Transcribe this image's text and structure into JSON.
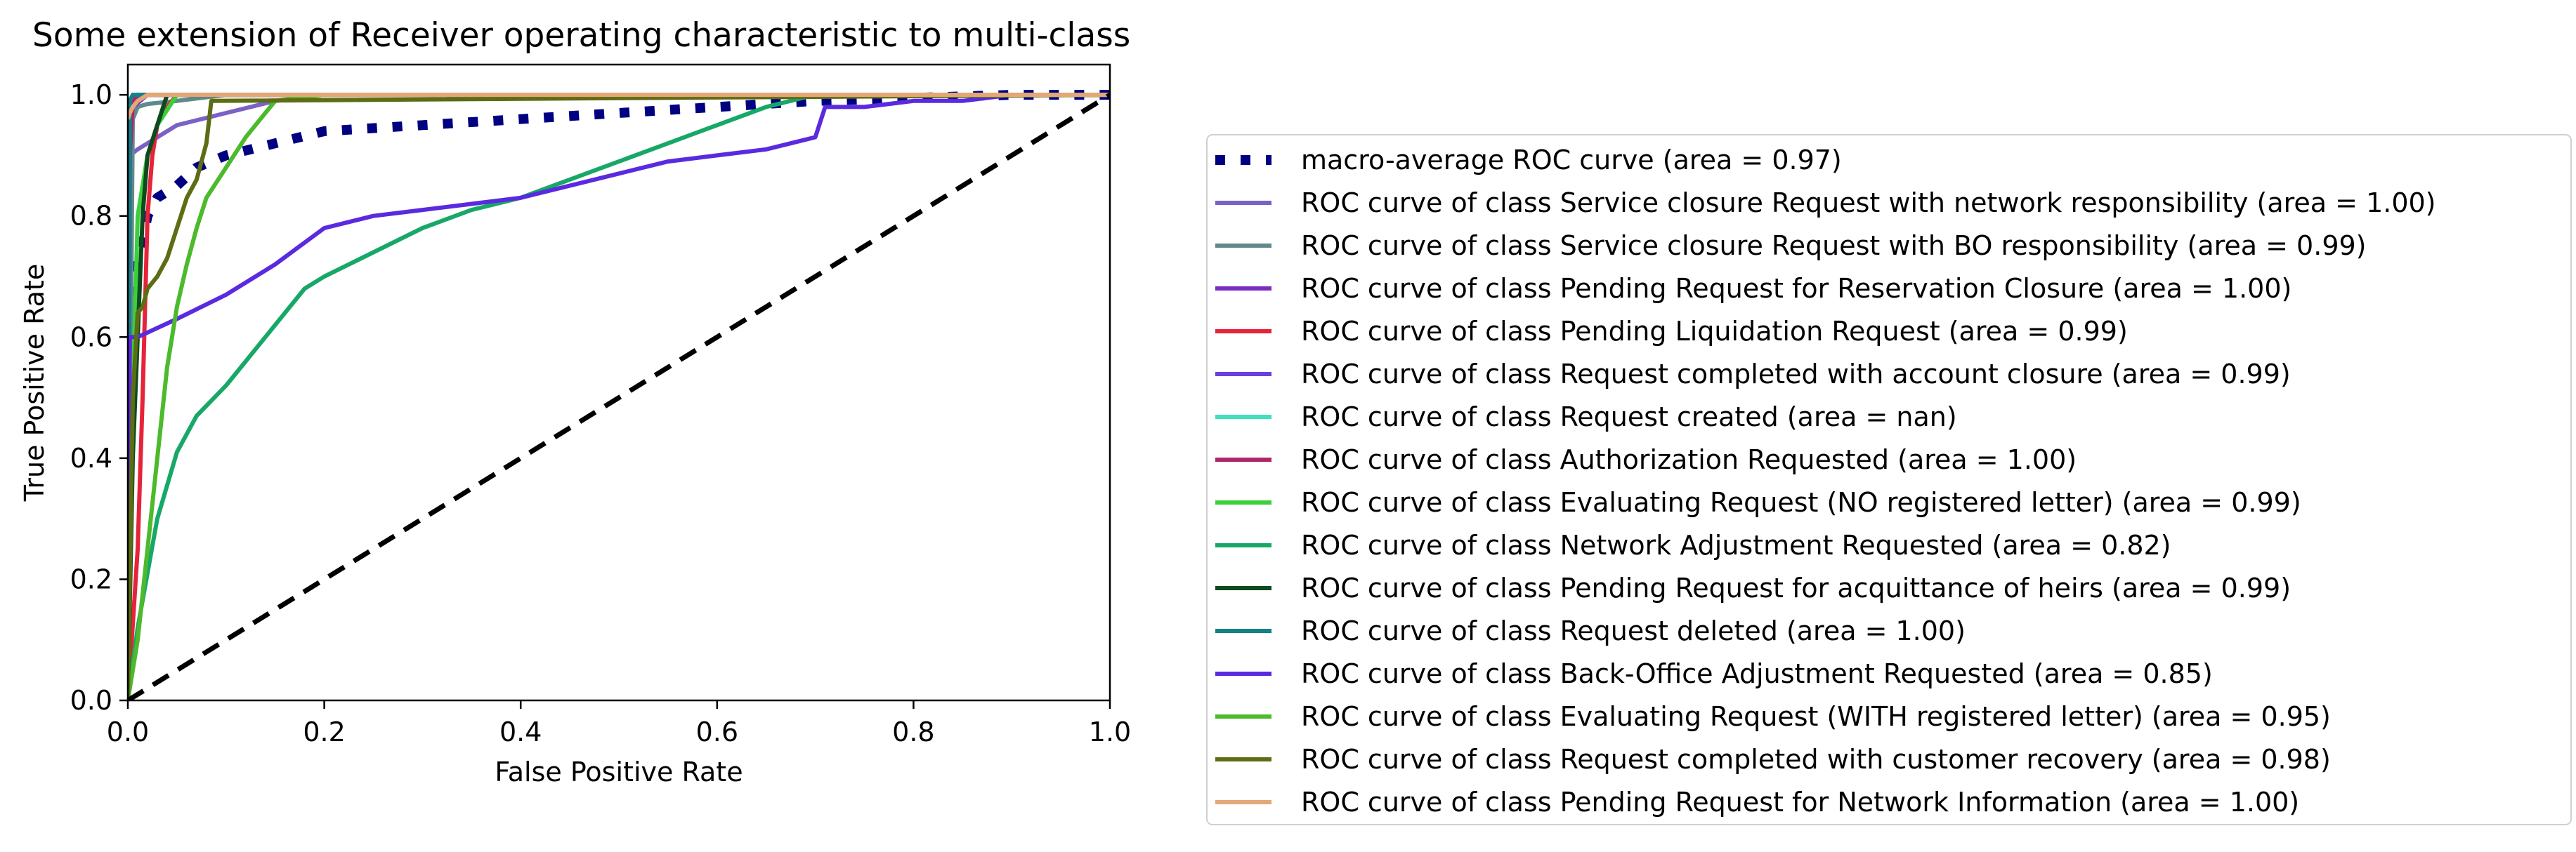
{
  "chart_data": {
    "type": "line",
    "title": "Some extension of Receiver operating characteristic to multi-class",
    "xlabel": "False Positive Rate",
    "ylabel": "True Positive Rate",
    "xlim": [
      0.0,
      1.0
    ],
    "ylim": [
      0.0,
      1.05
    ],
    "xticks": [
      "0.0",
      "0.2",
      "0.4",
      "0.6",
      "0.8",
      "1.0"
    ],
    "yticks": [
      "0.0",
      "0.2",
      "0.4",
      "0.6",
      "0.8",
      "1.0"
    ],
    "grid": false,
    "legend_position": "right",
    "chance_line": {
      "x": [
        0,
        1
      ],
      "y": [
        0,
        1
      ],
      "color": "#000000",
      "style": "dashed"
    },
    "series": [
      {
        "name": "macro-average ROC curve (area = 0.97)",
        "color": "#000080",
        "style": "dotted",
        "x": [
          0,
          0.005,
          0.01,
          0.02,
          0.03,
          0.05,
          0.07,
          0.1,
          0.15,
          0.2,
          0.3,
          0.4,
          0.5,
          0.6,
          0.7,
          0.8,
          0.9,
          1.0
        ],
        "y": [
          0.5,
          0.67,
          0.72,
          0.8,
          0.83,
          0.85,
          0.88,
          0.9,
          0.92,
          0.94,
          0.95,
          0.96,
          0.97,
          0.98,
          0.99,
          0.995,
          1.0,
          1.0
        ]
      },
      {
        "name": "ROC curve of class Service closure Request with network responsibility (area = 1.00)",
        "color": "#7b61c6",
        "x": [
          0,
          0.002,
          0.01,
          0.02,
          0.05,
          0.1,
          0.15,
          0.2,
          0.25,
          1.0
        ],
        "y": [
          0,
          0.9,
          0.91,
          0.92,
          0.95,
          0.97,
          0.99,
          1.0,
          1.0,
          1.0
        ]
      },
      {
        "name": "ROC curve of class Service closure Request with BO responsibility (area = 0.99)",
        "color": "#5f8a8b",
        "x": [
          0,
          0.005,
          0.01,
          0.02,
          0.05,
          0.1,
          1.0
        ],
        "y": [
          0,
          0.96,
          0.98,
          0.985,
          0.99,
          1.0,
          1.0
        ]
      },
      {
        "name": "ROC curve of class Pending Request for Reservation Closure (area = 1.00)",
        "color": "#7b2cbf",
        "x": [
          0,
          0.002,
          0.005,
          0.02,
          1.0
        ],
        "y": [
          0,
          0.95,
          0.98,
          1.0,
          1.0
        ]
      },
      {
        "name": "ROC curve of class Pending Liquidation Request (area = 0.99)",
        "color": "#e6233a",
        "x": [
          0,
          0.01,
          0.015,
          0.02,
          0.025,
          0.03,
          0.04,
          0.05,
          1.0
        ],
        "y": [
          0,
          0.25,
          0.5,
          0.8,
          0.9,
          0.95,
          0.98,
          1.0,
          1.0
        ]
      },
      {
        "name": "ROC curve of class Request completed with account closure (area = 0.99)",
        "color": "#6a3fe0",
        "x": [
          0,
          0.002,
          0.005,
          0.01,
          0.02,
          1.0
        ],
        "y": [
          0,
          0.97,
          0.99,
          0.995,
          1.0,
          1.0
        ]
      },
      {
        "name": "ROC curve of class Request created (area = nan)",
        "color": "#40e0c0",
        "x": [],
        "y": []
      },
      {
        "name": "ROC curve of class Authorization Requested (area = 1.00)",
        "color": "#b0246a",
        "x": [
          0,
          0.002,
          0.005,
          0.01,
          1.0
        ],
        "y": [
          0,
          0.9,
          0.99,
          1.0,
          1.0
        ]
      },
      {
        "name": "ROC curve of class Evaluating Request (NO registered letter) (area = 0.99)",
        "color": "#3ad03a",
        "x": [
          0,
          0.005,
          0.01,
          0.02,
          0.03,
          0.05,
          1.0
        ],
        "y": [
          0,
          0.5,
          0.8,
          0.9,
          0.95,
          1.0,
          1.0
        ]
      },
      {
        "name": "ROC curve of class Network Adjustment Requested (area = 0.82)",
        "color": "#17a868",
        "x": [
          0,
          0.01,
          0.03,
          0.05,
          0.07,
          0.1,
          0.12,
          0.15,
          0.18,
          0.2,
          0.25,
          0.3,
          0.35,
          0.4,
          0.45,
          0.5,
          0.55,
          0.6,
          0.65,
          0.7,
          1.0
        ],
        "y": [
          0,
          0.12,
          0.3,
          0.41,
          0.47,
          0.52,
          0.56,
          0.62,
          0.68,
          0.7,
          0.74,
          0.78,
          0.81,
          0.83,
          0.86,
          0.89,
          0.92,
          0.95,
          0.98,
          1.0,
          1.0
        ]
      },
      {
        "name": "ROC curve of class Pending Request for acquittance of heirs (area = 0.99)",
        "color": "#0d4a1f",
        "x": [
          0,
          0.005,
          0.01,
          0.015,
          0.02,
          0.03,
          0.04,
          1.0
        ],
        "y": [
          0,
          0.4,
          0.6,
          0.8,
          0.9,
          0.95,
          1.0,
          1.0
        ]
      },
      {
        "name": "ROC curve of class Request deleted (area = 1.00)",
        "color": "#14808a",
        "x": [
          0,
          0.002,
          0.005,
          1.0
        ],
        "y": [
          0,
          0.99,
          1.0,
          1.0
        ]
      },
      {
        "name": "ROC curve of class Back-Office Adjustment Requested (area = 0.85)",
        "color": "#5a2ae0",
        "x": [
          0,
          0.002,
          0.01,
          0.05,
          0.1,
          0.15,
          0.2,
          0.25,
          0.3,
          0.35,
          0.4,
          0.45,
          0.5,
          0.55,
          0.6,
          0.65,
          0.7,
          0.71,
          0.75,
          0.8,
          0.85,
          0.9,
          0.95,
          1.0
        ],
        "y": [
          0,
          0.6,
          0.6,
          0.63,
          0.67,
          0.72,
          0.78,
          0.8,
          0.81,
          0.82,
          0.83,
          0.85,
          0.87,
          0.89,
          0.9,
          0.91,
          0.93,
          0.98,
          0.98,
          0.99,
          0.99,
          1.0,
          1.0,
          1.0
        ]
      },
      {
        "name": "ROC curve of class Evaluating Request (WITH registered letter) (area = 0.95)",
        "color": "#4cba2c",
        "x": [
          0,
          0.01,
          0.02,
          0.03,
          0.04,
          0.05,
          0.06,
          0.07,
          0.08,
          0.1,
          0.12,
          0.14,
          0.15,
          0.2,
          1.0
        ],
        "y": [
          0,
          0.1,
          0.25,
          0.4,
          0.55,
          0.65,
          0.72,
          0.78,
          0.83,
          0.88,
          0.93,
          0.97,
          0.99,
          1.0,
          1.0
        ]
      },
      {
        "name": "ROC curve of class Request completed with customer recovery (area = 0.98)",
        "color": "#5c6d14",
        "x": [
          0,
          0.005,
          0.01,
          0.015,
          0.02,
          0.03,
          0.04,
          0.05,
          0.06,
          0.07,
          0.08,
          0.085,
          1.0
        ],
        "y": [
          0,
          0.5,
          0.64,
          0.65,
          0.68,
          0.7,
          0.73,
          0.78,
          0.83,
          0.86,
          0.92,
          0.99,
          1.0
        ]
      },
      {
        "name": "ROC curve of class Pending Request for Network Information (area = 1.00)",
        "color": "#e3a876",
        "x": [
          0,
          0.002,
          0.005,
          0.01,
          0.02,
          1.0
        ],
        "y": [
          0.96,
          0.97,
          0.98,
          0.99,
          1.0,
          1.0
        ]
      }
    ]
  }
}
